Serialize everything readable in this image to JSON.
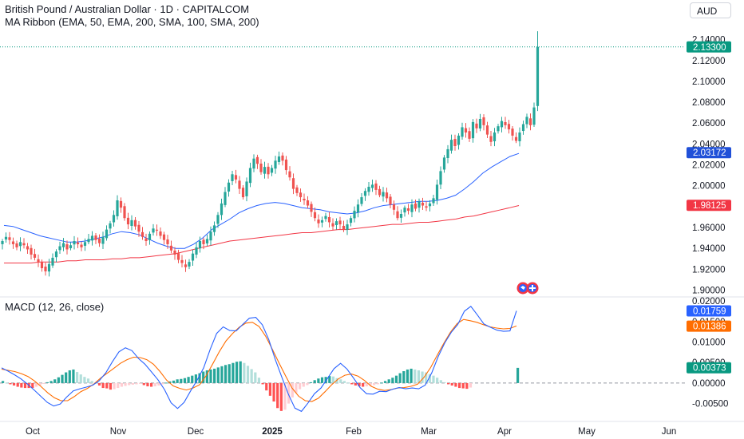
{
  "header": {
    "title": "British Pound / Australian Dollar · 1D · CAPITALCOM",
    "indicator": "MA Ribbon (EMA, 50, EMA, 200, SMA, 100, SMA, 200)",
    "currency": "AUD"
  },
  "macd_header": {
    "label": "MACD (12, 26, close)"
  },
  "colors": {
    "up": "#26a69a",
    "down": "#ef5350",
    "ema50": "#2962ff",
    "ema200": "#f23645",
    "macd": "#2962ff",
    "signal": "#ff6d00",
    "last_price": "#089981"
  },
  "chart_data": [
    {
      "type": "candlestick",
      "title": "British Pound / Australian Dollar · 1D · CAPITALCOM",
      "x_axis": {
        "type": "date",
        "tick_labels": [
          "Oct",
          "Nov",
          "Dec",
          "2025",
          "Feb",
          "Mar",
          "Apr",
          "May",
          "Jun"
        ]
      },
      "y_axis": {
        "range": [
          1.895,
          2.155
        ],
        "tick_labels": [
          "1.90000",
          "1.92000",
          "1.94000",
          "1.96000",
          "1.98000",
          "2.00000",
          "2.02000",
          "2.04000",
          "2.06000",
          "2.08000",
          "2.10000",
          "2.12000",
          "2.14000"
        ]
      },
      "price_labels": {
        "last": "2.13300",
        "ema50": "2.03172",
        "ema200": "1.98125"
      },
      "last_price": 2.133,
      "closes": [
        1.947,
        1.951,
        1.948,
        1.944,
        1.941,
        1.946,
        1.943,
        1.939,
        1.934,
        1.931,
        1.927,
        1.921,
        1.918,
        1.925,
        1.931,
        1.937,
        1.942,
        1.945,
        1.939,
        1.943,
        1.947,
        1.944,
        1.941,
        1.946,
        1.949,
        1.952,
        1.948,
        1.945,
        1.951,
        1.958,
        1.964,
        1.972,
        1.986,
        1.979,
        1.969,
        1.963,
        1.967,
        1.961,
        1.956,
        1.951,
        1.947,
        1.954,
        1.959,
        1.957,
        1.952,
        1.948,
        1.944,
        1.938,
        1.934,
        1.929,
        1.926,
        1.922,
        1.927,
        1.935,
        1.941,
        1.947,
        1.944,
        1.949,
        1.956,
        1.962,
        1.972,
        1.983,
        1.994,
        2.003,
        2.011,
        2.006,
        1.997,
        1.989,
        2.004,
        2.017,
        2.026,
        2.021,
        2.013,
        2.018,
        2.011,
        2.017,
        2.024,
        2.028,
        2.024,
        2.015,
        2.008,
        1.997,
        1.993,
        1.989,
        1.986,
        1.981,
        1.975,
        1.969,
        1.964,
        1.967,
        1.971,
        1.965,
        1.961,
        1.966,
        1.963,
        1.958,
        1.963,
        1.969,
        1.976,
        1.982,
        1.989,
        1.995,
        1.999,
        2.001,
        1.996,
        1.991,
        1.994,
        1.988,
        1.982,
        1.977,
        1.969,
        1.973,
        1.979,
        1.976,
        1.982,
        1.978,
        1.985,
        1.981,
        1.979,
        1.983,
        1.988,
        2.001,
        2.014,
        2.027,
        2.035,
        2.044,
        2.038,
        2.048,
        2.056,
        2.051,
        2.045,
        2.061,
        2.055,
        2.064,
        2.058,
        2.049,
        2.042,
        2.051,
        2.057,
        2.062,
        2.058,
        2.054,
        2.048,
        2.043,
        2.051,
        2.059,
        2.066,
        2.058,
        2.075,
        2.133
      ],
      "series": [
        {
          "name": "EMA 50",
          "values": [
            1.962,
            1.961,
            1.958,
            1.955,
            1.952,
            1.95,
            1.948,
            1.946,
            1.946,
            1.947,
            1.949,
            1.951,
            1.954,
            1.956,
            1.955,
            1.953,
            1.949,
            1.945,
            1.942,
            1.94,
            1.94,
            1.944,
            1.95,
            1.958,
            1.963,
            1.968,
            1.974,
            1.978,
            1.981,
            1.983,
            1.984,
            1.983,
            1.981,
            1.979,
            1.978,
            1.977,
            1.975,
            1.974,
            1.973,
            1.974,
            1.976,
            1.979,
            1.981,
            1.982,
            1.983,
            1.984,
            1.985,
            1.985,
            1.986,
            1.988,
            1.991,
            1.997,
            2.004,
            2.012,
            2.018,
            2.023,
            2.028,
            2.031
          ]
        },
        {
          "name": "EMA 200",
          "values": [
            1.926,
            1.926,
            1.926,
            1.926,
            1.927,
            1.927,
            1.927,
            1.928,
            1.928,
            1.929,
            1.929,
            1.929,
            1.93,
            1.93,
            1.931,
            1.931,
            1.932,
            1.933,
            1.934,
            1.935,
            1.937,
            1.939,
            1.941,
            1.943,
            1.945,
            1.947,
            1.948,
            1.949,
            1.95,
            1.951,
            1.952,
            1.953,
            1.954,
            1.955,
            1.955,
            1.956,
            1.957,
            1.958,
            1.958,
            1.959,
            1.96,
            1.961,
            1.962,
            1.963,
            1.963,
            1.964,
            1.965,
            1.965,
            1.966,
            1.967,
            1.968,
            1.97,
            1.971,
            1.973,
            1.975,
            1.977,
            1.979,
            1.981
          ]
        }
      ],
      "ma_start_index": 0,
      "ma_step": 2.5
    },
    {
      "type": "macd",
      "title": "MACD (12, 26, close)",
      "y_axis": {
        "range": [
          -0.0078,
          0.0206
        ],
        "tick_labels": [
          "-0.00500",
          "0.00000",
          "0.00500",
          "0.01000",
          "0.01500",
          "0.02000"
        ]
      },
      "value_labels": {
        "macd": "0.01759",
        "signal": "0.01386",
        "histogram": "0.00373"
      },
      "macd": [
        0.0037,
        0.0029,
        0.002,
        0.001,
        -0.0003,
        -0.0017,
        -0.0032,
        -0.0047,
        -0.0056,
        -0.0051,
        -0.0034,
        -0.0019,
        -0.0014,
        -0.001,
        -0.0005,
        0.0006,
        0.0025,
        0.0052,
        0.0076,
        0.0086,
        0.0079,
        0.006,
        0.0046,
        0.0027,
        0.0008,
        -0.0016,
        -0.0048,
        -0.0062,
        -0.0047,
        -0.0019,
        0.0007,
        0.0037,
        0.0082,
        0.0121,
        0.0137,
        0.0128,
        0.0127,
        0.0143,
        0.0158,
        0.016,
        0.0142,
        0.0106,
        0.0057,
        0.0014,
        -0.0027,
        -0.0061,
        -0.0069,
        -0.0049,
        -0.0026,
        -0.0012,
        0.0011,
        0.0035,
        0.0048,
        0.0034,
        0.0012,
        -0.0011,
        -0.0026,
        -0.0027,
        -0.002,
        -0.0021,
        -0.0015,
        -0.0011,
        -0.0014,
        -0.0012,
        -0.0014,
        -0.0005,
        0.0025,
        0.0065,
        0.0098,
        0.0124,
        0.0143,
        0.0175,
        0.0187,
        0.0166,
        0.0144,
        0.0136,
        0.0129,
        0.0126,
        0.0127,
        0.0176
      ],
      "signal": [
        0.0034,
        0.0031,
        0.0028,
        0.0023,
        0.0016,
        0.0005,
        -0.0009,
        -0.0024,
        -0.0036,
        -0.0043,
        -0.0043,
        -0.0033,
        -0.0021,
        -0.0013,
        -0.0002,
        0.0012,
        0.0024,
        0.0036,
        0.0048,
        0.0057,
        0.0063,
        0.0062,
        0.0057,
        0.0046,
        0.0028,
        0.0007,
        -0.0007,
        -0.0013,
        -0.0017,
        -0.0012,
        -0.0004,
        0.0018,
        0.0047,
        0.0077,
        0.0103,
        0.0121,
        0.0136,
        0.0146,
        0.0148,
        0.0138,
        0.0114,
        0.0083,
        0.005,
        0.0018,
        -0.0012,
        -0.0032,
        -0.0043,
        -0.0045,
        -0.0037,
        -0.0021,
        -0.0004,
        0.001,
        0.0019,
        0.0022,
        0.0017,
        0.0006,
        -0.0008,
        -0.0015,
        -0.0018,
        -0.0016,
        -0.0012,
        -0.0011,
        -0.0008,
        -0.0003,
        0.0014,
        0.0038,
        0.0068,
        0.0097,
        0.0124,
        0.0145,
        0.0155,
        0.0152,
        0.0148,
        0.0142,
        0.0137,
        0.0134,
        0.0132,
        0.0133,
        0.0139
      ],
      "histogram": [
        0.0005,
        0.0001,
        -0.0003,
        -0.0006,
        -0.0009,
        -0.0011,
        -0.0012,
        -0.0012,
        -0.0012,
        -0.0009,
        -0.0006,
        -0.0002,
        0.0002,
        0.0005,
        0.0009,
        0.0014,
        0.002,
        0.0026,
        0.0031,
        0.0033,
        0.0027,
        0.0021,
        0.0015,
        0.0011,
        0.0005,
        0.0001,
        -0.0006,
        -0.0012,
        -0.0013,
        -0.0016,
        -0.0015,
        -0.0012,
        -0.0009,
        -0.0007,
        -0.0005,
        -0.0004,
        -0.0003,
        -0.0002,
        -0.0005,
        -0.0008,
        -0.0009,
        -0.0008,
        -0.0006,
        -0.0003,
        0.0001,
        0.0004,
        0.0006,
        0.0009,
        0.001,
        0.0012,
        0.0015,
        0.0018,
        0.0021,
        0.0024,
        0.0028,
        0.0031,
        0.0033,
        0.0035,
        0.0038,
        0.0041,
        0.0044,
        0.0046,
        0.0049,
        0.0052,
        0.0053,
        0.0049,
        0.0042,
        0.0034,
        0.0026,
        0.0013,
        -0.0003,
        -0.0018,
        -0.0031,
        -0.0045,
        -0.0061,
        -0.0068,
        -0.0065,
        -0.005,
        -0.0035,
        -0.0024,
        -0.0015,
        -0.0009,
        -0.0005,
        0.0002,
        0.0007,
        0.0011,
        0.0014,
        0.0015,
        0.0017,
        0.0016,
        0.0012,
        0.0009,
        0.0005,
        0.0001,
        -0.0003,
        -0.0006,
        -0.0008,
        -0.0009,
        -0.0008,
        -0.0007,
        -0.0005,
        -0.0003,
        0.0001,
        0.0005,
        0.0009,
        0.0013,
        0.0018,
        0.0024,
        0.0029,
        0.0033,
        0.0035,
        0.0033,
        0.0031,
        0.0028,
        0.0026,
        0.0022,
        0.0018,
        0.0013,
        0.0007,
        0.0002,
        -0.0003,
        -0.0006,
        -0.0009,
        -0.0012,
        -0.0013,
        -0.0014,
        -0.0011,
        0.0037
      ],
      "histogram_gap_after": 139
    }
  ]
}
